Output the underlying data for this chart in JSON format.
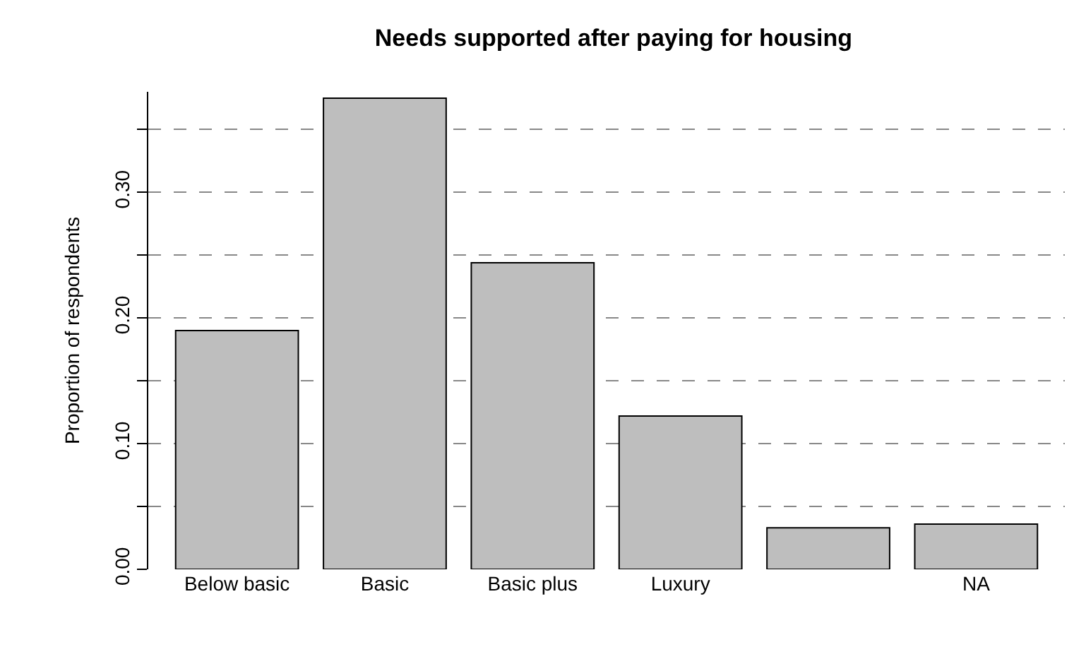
{
  "chart_data": {
    "type": "bar",
    "title": "Needs supported after paying for housing",
    "ylabel": "Proportion of respondents",
    "categories": [
      "Below basic",
      "Basic",
      "Basic plus",
      "Luxury",
      null,
      "NA"
    ],
    "values": [
      0.19,
      0.375,
      0.244,
      0.122,
      0.033,
      0.036
    ],
    "color": "#bebebe",
    "ylim": [
      0,
      0.38
    ],
    "yticks": [
      {
        "value": 0,
        "label": "0.00"
      },
      {
        "value": 0.05,
        "label": null
      },
      {
        "value": 0.1,
        "label": "0.10"
      },
      {
        "value": 0.15,
        "label": null
      },
      {
        "value": 0.2,
        "label": "0.20"
      },
      {
        "value": 0.25,
        "label": null
      },
      {
        "value": 0.3,
        "label": "0.30"
      },
      {
        "value": 0.35,
        "label": null
      }
    ],
    "grid": "y",
    "legend": false
  }
}
